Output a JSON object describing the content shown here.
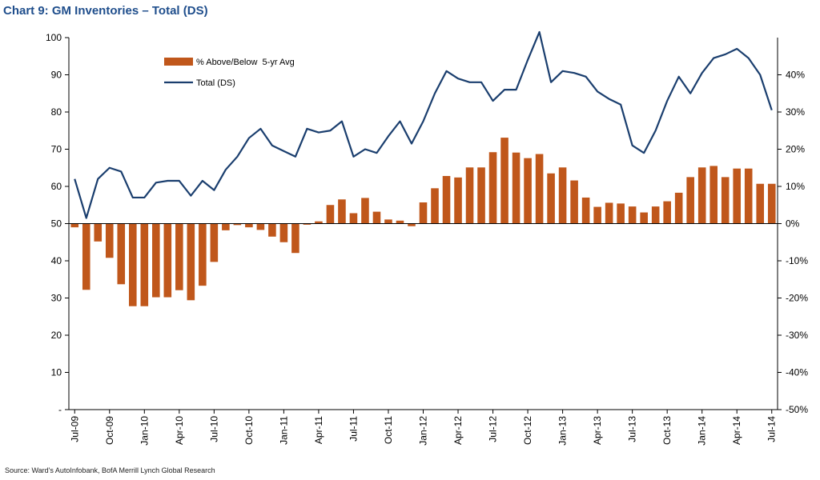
{
  "title": "Chart 9: GM Inventories – Total (DS)",
  "source": "Source: Ward's AutoInfobank, BofA Merrill Lynch Global Research",
  "colors": {
    "bar": "#c0571b",
    "line": "#1a3e6e",
    "title": "#1f4e8c",
    "axis": "#000000"
  },
  "chart_data": {
    "type": "bar+line",
    "x": [
      "Jul-09",
      "Aug-09",
      "Sep-09",
      "Oct-09",
      "Nov-09",
      "Dec-09",
      "Jan-10",
      "Feb-10",
      "Mar-10",
      "Apr-10",
      "May-10",
      "Jun-10",
      "Jul-10",
      "Aug-10",
      "Sep-10",
      "Oct-10",
      "Nov-10",
      "Dec-10",
      "Jan-11",
      "Feb-11",
      "Mar-11",
      "Apr-11",
      "May-11",
      "Jun-11",
      "Jul-11",
      "Aug-11",
      "Sep-11",
      "Oct-11",
      "Nov-11",
      "Dec-11",
      "Jan-12",
      "Feb-12",
      "Mar-12",
      "Apr-12",
      "May-12",
      "Jun-12",
      "Jul-12",
      "Aug-12",
      "Sep-12",
      "Oct-12",
      "Nov-12",
      "Dec-12",
      "Jan-13",
      "Feb-13",
      "Mar-13",
      "Apr-13",
      "May-13",
      "Jun-13",
      "Jul-13",
      "Aug-13",
      "Sep-13",
      "Oct-13",
      "Nov-13",
      "Dec-13",
      "Jan-14",
      "Feb-14",
      "Mar-14",
      "Apr-14",
      "May-14",
      "Jun-14",
      "Jul-14"
    ],
    "x_tick_labels": [
      "Jul-09",
      "Oct-09",
      "Jan-10",
      "Apr-10",
      "Jul-10",
      "Oct-10",
      "Jan-11",
      "Apr-11",
      "Jul-11",
      "Oct-11",
      "Jan-12",
      "Apr-12",
      "Jul-12",
      "Oct-12",
      "Jan-13",
      "Apr-13",
      "Jul-13",
      "Oct-13",
      "Jan-14",
      "Apr-14",
      "Jul-14"
    ],
    "series": [
      {
        "name": "% Above/Below  5-yr Avg",
        "type": "bar",
        "axis": "right",
        "values": [
          -1.0,
          -17.8,
          -4.8,
          -9.2,
          -16.3,
          -22.2,
          -22.2,
          -19.8,
          -19.8,
          -17.9,
          -20.6,
          -16.7,
          -10.3,
          -1.8,
          -0.4,
          -1.0,
          -1.7,
          -3.5,
          -5.0,
          -7.9,
          -0.3,
          0.6,
          5.0,
          6.5,
          2.8,
          6.9,
          3.2,
          1.1,
          0.8,
          -0.7,
          5.7,
          9.5,
          12.8,
          12.4,
          15.1,
          15.1,
          19.2,
          23.1,
          19.1,
          17.6,
          18.7,
          13.5,
          15.1,
          11.6,
          7.0,
          4.5,
          5.6,
          5.4,
          4.6,
          3.0,
          4.6,
          6.0,
          8.3,
          12.5,
          15.1,
          15.5,
          12.5,
          14.8,
          14.8,
          10.7,
          10.7
        ]
      },
      {
        "name": "Total (DS)",
        "type": "line",
        "axis": "left",
        "values": [
          62.0,
          51.5,
          62.0,
          65.0,
          64.0,
          57.0,
          57.0,
          61.0,
          61.5,
          61.5,
          57.5,
          61.5,
          59.0,
          64.5,
          68.0,
          73.0,
          75.5,
          71.0,
          69.5,
          68.0,
          75.5,
          74.5,
          75.0,
          77.5,
          68.0,
          70.0,
          69.0,
          73.5,
          77.5,
          71.5,
          77.5,
          85.0,
          91.0,
          89.0,
          88.0,
          88.0,
          83.0,
          86.0,
          86.0,
          94.0,
          101.5,
          88.0,
          91.0,
          90.5,
          89.5,
          85.5,
          83.5,
          82.0,
          71.0,
          69.0,
          75.0,
          83.0,
          89.5,
          85.0,
          90.5,
          94.5,
          95.5,
          97.0,
          94.5,
          90.0,
          80.5
        ]
      }
    ],
    "y_left": {
      "min": 0,
      "max": 100,
      "step": 10,
      "ticks": [
        "-",
        "10",
        "20",
        "30",
        "40",
        "50",
        "60",
        "70",
        "80",
        "90",
        "100"
      ]
    },
    "y_right": {
      "min": -50,
      "max": 50,
      "step": 10,
      "ticks": [
        "-50%",
        "-40%",
        "-30%",
        "-20%",
        "-10%",
        "0%",
        "10%",
        "20%",
        "30%",
        "40%"
      ]
    },
    "grid": false,
    "legend": "top-left"
  }
}
